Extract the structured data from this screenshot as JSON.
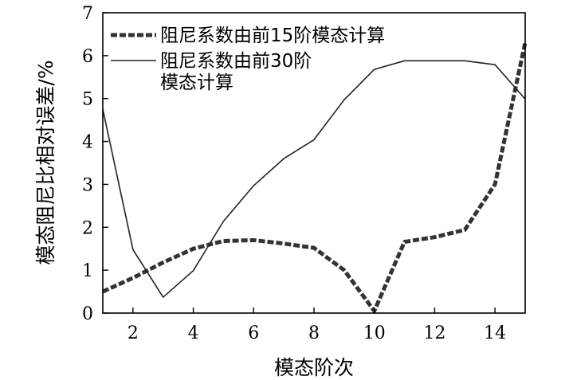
{
  "chart_data": {
    "type": "line",
    "xlabel": "模态阶次",
    "ylabel": "模态阻尼比相对误差/%",
    "xlim": [
      1,
      15
    ],
    "ylim": [
      0,
      7
    ],
    "x_ticks": [
      2,
      4,
      6,
      8,
      10,
      12,
      14
    ],
    "y_ticks": [
      0,
      1,
      2,
      3,
      4,
      5,
      6,
      7
    ],
    "grid": false,
    "legend_position": "top-left",
    "x": [
      1,
      2,
      3,
      4,
      5,
      6,
      7,
      8,
      9,
      10,
      11,
      12,
      13,
      14,
      15
    ],
    "series": [
      {
        "name": "阻尼系数由前15阶模态计算",
        "style": "dashed-thick",
        "color": "#333333",
        "values": [
          0.5,
          0.82,
          1.18,
          1.5,
          1.68,
          1.7,
          1.62,
          1.52,
          1.0,
          0.05,
          1.66,
          1.77,
          1.94,
          3.0,
          6.3
        ]
      },
      {
        "name_lines": [
          "阻尼系数由前30阶",
          "模态计算"
        ],
        "style": "solid-thin",
        "color": "#222222",
        "values": [
          4.75,
          1.48,
          0.37,
          0.99,
          2.14,
          2.97,
          3.6,
          4.04,
          4.97,
          5.68,
          5.88,
          5.88,
          5.88,
          5.79,
          4.99
        ]
      }
    ]
  }
}
